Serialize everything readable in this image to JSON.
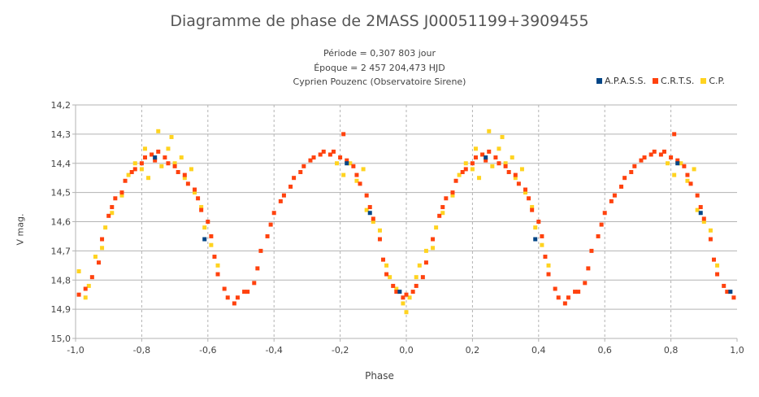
{
  "chart_data": {
    "type": "scatter",
    "title": "Diagramme de phase de 2MASS J00051199+3909455",
    "subtitle_lines": [
      "Période = 0,307 803 jour",
      "Époque = 2 457 204,473 HJD",
      "Cyprien Pouzenc (Observatoire Sirene)"
    ],
    "xlabel": "Phase",
    "ylabel": "V mag.",
    "xlim": [
      -1.0,
      1.0
    ],
    "ylim": [
      14.2,
      15.0
    ],
    "y_inverted": true,
    "grid": "vertical dashed, horizontal solid",
    "legend_position": "top-right",
    "x_ticks": [
      "-1,0",
      "-0,8",
      "-0,6",
      "-0,4",
      "-0,2",
      "0,0",
      "0,2",
      "0,4",
      "0,6",
      "0,8",
      "1,0"
    ],
    "y_ticks": [
      "14,2",
      "14,3",
      "14,4",
      "14,5",
      "14,6",
      "14,7",
      "14,8",
      "14,9",
      "15,0"
    ],
    "series": [
      {
        "name": "A.P.A.S.S.",
        "color": "#004586",
        "points": [
          [
            -0.76,
            14.38
          ],
          [
            -0.61,
            14.66
          ],
          [
            -0.18,
            14.4
          ],
          [
            -0.11,
            14.57
          ],
          [
            -0.02,
            14.84
          ],
          [
            0.24,
            14.38
          ],
          [
            0.39,
            14.66
          ],
          [
            0.82,
            14.4
          ],
          [
            0.89,
            14.57
          ],
          [
            0.98,
            14.84
          ]
        ]
      },
      {
        "name": "C.R.T.S.",
        "color": "#ff420e",
        "points": [
          [
            -0.99,
            14.85
          ],
          [
            -0.97,
            14.83
          ],
          [
            -0.95,
            14.79
          ],
          [
            -0.93,
            14.74
          ],
          [
            -0.92,
            14.66
          ],
          [
            -0.9,
            14.58
          ],
          [
            -0.89,
            14.55
          ],
          [
            -0.88,
            14.52
          ],
          [
            -0.86,
            14.5
          ],
          [
            -0.85,
            14.46
          ],
          [
            -0.83,
            14.43
          ],
          [
            -0.82,
            14.42
          ],
          [
            -0.8,
            14.4
          ],
          [
            -0.79,
            14.38
          ],
          [
            -0.77,
            14.37
          ],
          [
            -0.76,
            14.39
          ],
          [
            -0.75,
            14.36
          ],
          [
            -0.73,
            14.38
          ],
          [
            -0.72,
            14.4
          ],
          [
            -0.7,
            14.41
          ],
          [
            -0.69,
            14.43
          ],
          [
            -0.67,
            14.44
          ],
          [
            -0.66,
            14.47
          ],
          [
            -0.64,
            14.49
          ],
          [
            -0.63,
            14.52
          ],
          [
            -0.62,
            14.56
          ],
          [
            -0.6,
            14.6
          ],
          [
            -0.59,
            14.65
          ],
          [
            -0.58,
            14.72
          ],
          [
            -0.57,
            14.78
          ],
          [
            -0.55,
            14.83
          ],
          [
            -0.54,
            14.86
          ],
          [
            -0.52,
            14.88
          ],
          [
            -0.51,
            14.86
          ],
          [
            -0.49,
            14.84
          ],
          [
            -0.48,
            14.84
          ],
          [
            -0.46,
            14.81
          ],
          [
            -0.45,
            14.76
          ],
          [
            -0.44,
            14.7
          ],
          [
            -0.42,
            14.65
          ],
          [
            -0.41,
            14.61
          ],
          [
            -0.4,
            14.57
          ],
          [
            -0.38,
            14.53
          ],
          [
            -0.37,
            14.51
          ],
          [
            -0.35,
            14.48
          ],
          [
            -0.34,
            14.45
          ],
          [
            -0.32,
            14.43
          ],
          [
            -0.31,
            14.41
          ],
          [
            -0.29,
            14.39
          ],
          [
            -0.28,
            14.38
          ],
          [
            -0.26,
            14.37
          ],
          [
            -0.25,
            14.36
          ],
          [
            -0.23,
            14.37
          ],
          [
            -0.22,
            14.36
          ],
          [
            -0.2,
            14.38
          ],
          [
            -0.19,
            14.3
          ],
          [
            -0.18,
            14.39
          ],
          [
            -0.16,
            14.41
          ],
          [
            -0.15,
            14.44
          ],
          [
            -0.14,
            14.47
          ],
          [
            -0.12,
            14.51
          ],
          [
            -0.11,
            14.55
          ],
          [
            -0.1,
            14.59
          ],
          [
            -0.08,
            14.66
          ],
          [
            -0.07,
            14.73
          ],
          [
            -0.06,
            14.78
          ],
          [
            -0.04,
            14.82
          ],
          [
            -0.03,
            14.84
          ],
          [
            -0.01,
            14.86
          ],
          [
            0.0,
            14.85
          ],
          [
            0.02,
            14.84
          ],
          [
            0.03,
            14.82
          ],
          [
            0.05,
            14.79
          ],
          [
            0.06,
            14.74
          ],
          [
            0.08,
            14.66
          ],
          [
            0.1,
            14.58
          ],
          [
            0.11,
            14.55
          ],
          [
            0.12,
            14.52
          ],
          [
            0.14,
            14.5
          ],
          [
            0.15,
            14.46
          ],
          [
            0.17,
            14.43
          ],
          [
            0.18,
            14.42
          ],
          [
            0.2,
            14.4
          ],
          [
            0.21,
            14.38
          ],
          [
            0.23,
            14.37
          ],
          [
            0.24,
            14.39
          ],
          [
            0.25,
            14.36
          ],
          [
            0.27,
            14.38
          ],
          [
            0.28,
            14.4
          ],
          [
            0.3,
            14.41
          ],
          [
            0.31,
            14.43
          ],
          [
            0.33,
            14.44
          ],
          [
            0.34,
            14.47
          ],
          [
            0.36,
            14.49
          ],
          [
            0.37,
            14.52
          ],
          [
            0.38,
            14.56
          ],
          [
            0.4,
            14.6
          ],
          [
            0.41,
            14.65
          ],
          [
            0.42,
            14.72
          ],
          [
            0.43,
            14.78
          ],
          [
            0.45,
            14.83
          ],
          [
            0.46,
            14.86
          ],
          [
            0.48,
            14.88
          ],
          [
            0.49,
            14.86
          ],
          [
            0.51,
            14.84
          ],
          [
            0.52,
            14.84
          ],
          [
            0.54,
            14.81
          ],
          [
            0.55,
            14.76
          ],
          [
            0.56,
            14.7
          ],
          [
            0.58,
            14.65
          ],
          [
            0.59,
            14.61
          ],
          [
            0.6,
            14.57
          ],
          [
            0.62,
            14.53
          ],
          [
            0.63,
            14.51
          ],
          [
            0.65,
            14.48
          ],
          [
            0.66,
            14.45
          ],
          [
            0.68,
            14.43
          ],
          [
            0.69,
            14.41
          ],
          [
            0.71,
            14.39
          ],
          [
            0.72,
            14.38
          ],
          [
            0.74,
            14.37
          ],
          [
            0.75,
            14.36
          ],
          [
            0.77,
            14.37
          ],
          [
            0.78,
            14.36
          ],
          [
            0.8,
            14.38
          ],
          [
            0.81,
            14.3
          ],
          [
            0.82,
            14.39
          ],
          [
            0.84,
            14.41
          ],
          [
            0.85,
            14.44
          ],
          [
            0.86,
            14.47
          ],
          [
            0.88,
            14.51
          ],
          [
            0.89,
            14.55
          ],
          [
            0.9,
            14.59
          ],
          [
            0.92,
            14.66
          ],
          [
            0.93,
            14.73
          ],
          [
            0.94,
            14.78
          ],
          [
            0.96,
            14.82
          ],
          [
            0.97,
            14.84
          ],
          [
            0.99,
            14.86
          ]
        ]
      },
      {
        "name": "C.P.",
        "color": "#ffd320",
        "points": [
          [
            -0.99,
            14.77
          ],
          [
            -0.97,
            14.86
          ],
          [
            -0.96,
            14.82
          ],
          [
            -0.94,
            14.72
          ],
          [
            -0.92,
            14.69
          ],
          [
            -0.91,
            14.62
          ],
          [
            -0.89,
            14.57
          ],
          [
            -0.86,
            14.51
          ],
          [
            -0.84,
            14.44
          ],
          [
            -0.82,
            14.4
          ],
          [
            -0.8,
            14.42
          ],
          [
            -0.79,
            14.35
          ],
          [
            -0.78,
            14.45
          ],
          [
            -0.77,
            14.37
          ],
          [
            -0.75,
            14.29
          ],
          [
            -0.74,
            14.41
          ],
          [
            -0.72,
            14.35
          ],
          [
            -0.71,
            14.31
          ],
          [
            -0.7,
            14.4
          ],
          [
            -0.68,
            14.38
          ],
          [
            -0.67,
            14.45
          ],
          [
            -0.65,
            14.42
          ],
          [
            -0.64,
            14.5
          ],
          [
            -0.62,
            14.55
          ],
          [
            -0.61,
            14.62
          ],
          [
            -0.59,
            14.68
          ],
          [
            -0.57,
            14.75
          ],
          [
            -0.21,
            14.4
          ],
          [
            -0.19,
            14.44
          ],
          [
            -0.17,
            14.4
          ],
          [
            -0.15,
            14.46
          ],
          [
            -0.13,
            14.42
          ],
          [
            -0.12,
            14.56
          ],
          [
            -0.1,
            14.6
          ],
          [
            -0.08,
            14.63
          ],
          [
            -0.06,
            14.75
          ],
          [
            -0.05,
            14.79
          ],
          [
            -0.03,
            14.83
          ],
          [
            -0.01,
            14.88
          ],
          [
            0.0,
            14.91
          ],
          [
            0.01,
            14.86
          ],
          [
            0.03,
            14.79
          ],
          [
            0.04,
            14.75
          ],
          [
            0.06,
            14.7
          ],
          [
            0.08,
            14.69
          ],
          [
            0.09,
            14.62
          ],
          [
            0.11,
            14.57
          ],
          [
            0.14,
            14.51
          ],
          [
            0.16,
            14.44
          ],
          [
            0.18,
            14.4
          ],
          [
            0.2,
            14.42
          ],
          [
            0.21,
            14.35
          ],
          [
            0.22,
            14.45
          ],
          [
            0.23,
            14.37
          ],
          [
            0.25,
            14.29
          ],
          [
            0.26,
            14.41
          ],
          [
            0.28,
            14.35
          ],
          [
            0.29,
            14.31
          ],
          [
            0.3,
            14.4
          ],
          [
            0.32,
            14.38
          ],
          [
            0.33,
            14.45
          ],
          [
            0.35,
            14.42
          ],
          [
            0.36,
            14.5
          ],
          [
            0.38,
            14.55
          ],
          [
            0.39,
            14.62
          ],
          [
            0.41,
            14.68
          ],
          [
            0.43,
            14.75
          ],
          [
            0.79,
            14.4
          ],
          [
            0.81,
            14.44
          ],
          [
            0.83,
            14.4
          ],
          [
            0.85,
            14.46
          ],
          [
            0.87,
            14.42
          ],
          [
            0.88,
            14.56
          ],
          [
            0.9,
            14.6
          ],
          [
            0.92,
            14.63
          ],
          [
            0.94,
            14.75
          ]
        ]
      }
    ]
  }
}
